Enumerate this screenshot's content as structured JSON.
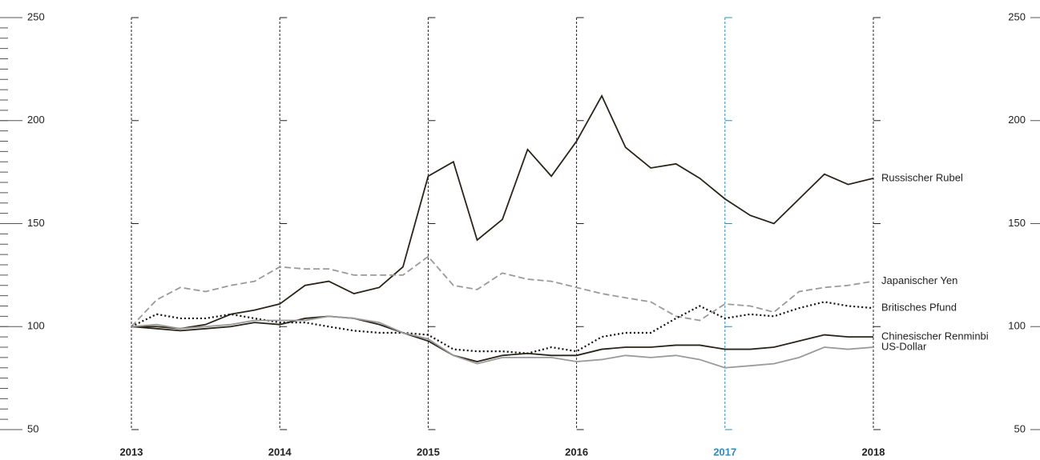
{
  "chart_data": {
    "type": "line",
    "x": [
      2013,
      2013.17,
      2013.33,
      2013.5,
      2013.67,
      2013.83,
      2014,
      2014.17,
      2014.33,
      2014.5,
      2014.67,
      2014.83,
      2015,
      2015.17,
      2015.33,
      2015.5,
      2015.67,
      2015.83,
      2016,
      2016.17,
      2016.33,
      2016.5,
      2016.67,
      2016.83,
      2017,
      2017.17,
      2017.33,
      2017.5,
      2017.67,
      2017.83,
      2018
    ],
    "series": [
      {
        "name": "Russischer Rubel",
        "color": "#2b2418",
        "dash": "solid",
        "values": [
          100,
          100,
          99,
          101,
          106,
          108,
          111,
          120,
          122,
          116,
          119,
          129,
          173,
          180,
          142,
          152,
          186,
          173,
          190,
          212,
          187,
          177,
          179,
          172,
          162,
          154,
          150,
          162,
          174,
          169,
          172
        ]
      },
      {
        "name": "Japanischer Yen",
        "color": "#9a9a9a",
        "dash": "dashed",
        "values": [
          100,
          113,
          119,
          117,
          120,
          122,
          129,
          128,
          128,
          125,
          125,
          125,
          134,
          120,
          118,
          126,
          123,
          122,
          119,
          116,
          114,
          112,
          105,
          103,
          111,
          110,
          107,
          117,
          119,
          120,
          122
        ]
      },
      {
        "name": "Britisches Pfund",
        "color": "#111111",
        "dash": "dotted",
        "values": [
          100,
          106,
          104,
          104,
          106,
          104,
          102,
          102,
          100,
          98,
          97,
          97,
          96,
          89,
          88,
          88,
          87,
          90,
          88,
          95,
          97,
          97,
          104,
          110,
          104,
          106,
          105,
          109,
          112,
          110,
          109
        ]
      },
      {
        "name": "Chinesischer Renminbi",
        "color": "#2b2418",
        "dash": "solid",
        "values": [
          100,
          99,
          98,
          99,
          100,
          102,
          101,
          104,
          105,
          104,
          101,
          97,
          93,
          86,
          83,
          86,
          87,
          86,
          86,
          89,
          90,
          90,
          91,
          91,
          89,
          89,
          90,
          93,
          96,
          95,
          95
        ]
      },
      {
        "name": "US-Dollar",
        "color": "#9a9a9a",
        "dash": "solid",
        "values": [
          100,
          101,
          99,
          100,
          101,
          103,
          103,
          103,
          105,
          104,
          102,
          97,
          94,
          86,
          82,
          85,
          85,
          85,
          83,
          84,
          86,
          85,
          86,
          84,
          80,
          81,
          82,
          85,
          90,
          89,
          90
        ]
      }
    ],
    "xlim": [
      2013,
      2018
    ],
    "xticks": [
      2013,
      2014,
      2015,
      2016,
      2017,
      2018
    ],
    "xtick_colors": [
      "#222222",
      "#222222",
      "#222222",
      "#222222",
      "#2a8dc5",
      "#222222"
    ],
    "ylim": [
      50,
      250
    ],
    "yticks": [
      50,
      100,
      150,
      200,
      250
    ],
    "minor_ytick_step": 5
  }
}
